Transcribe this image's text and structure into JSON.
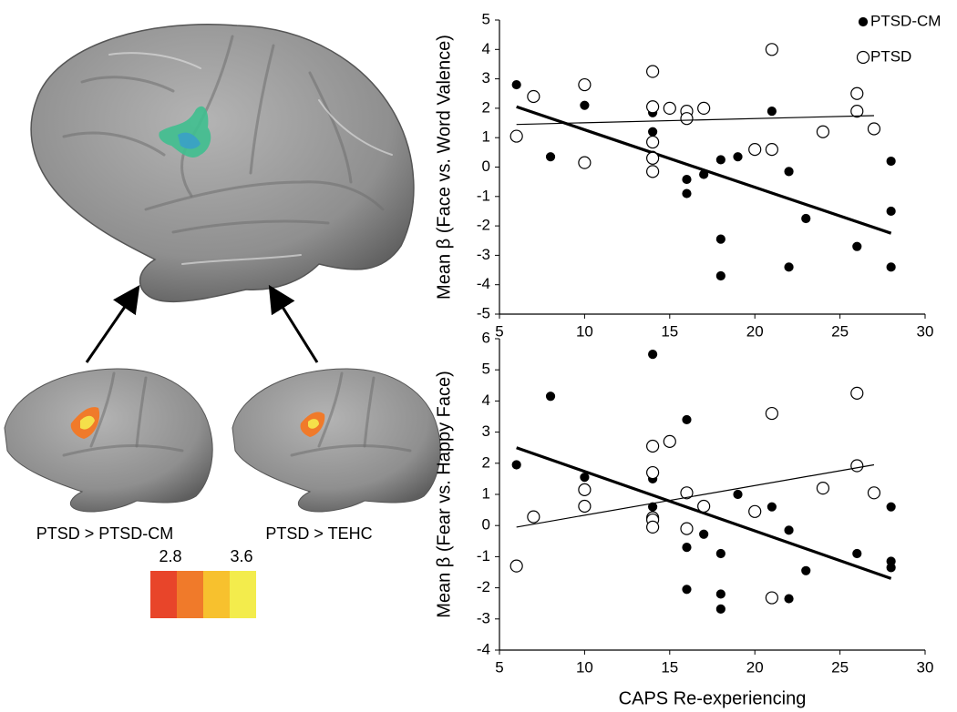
{
  "brain_panel": {
    "contrasts": [
      "PTSD > PTSD-CM",
      "PTSD > TEHC"
    ],
    "colorbar": {
      "min": 2.8,
      "max": 3.6
    }
  },
  "chart_data": [
    {
      "type": "scatter",
      "y_label": "Mean β (Face vs. Word Valence)",
      "xlim": [
        5,
        30
      ],
      "xticks": [
        5,
        10,
        15,
        20,
        25,
        30
      ],
      "ylim": [
        -5,
        5
      ],
      "yticks": [
        -5,
        -4,
        -3,
        -2,
        -1,
        0,
        1,
        2,
        3,
        4,
        5
      ],
      "legend": "top-right",
      "series": [
        {
          "name": "PTSD-CM",
          "color": "#000000",
          "marker": "filled",
          "x": [
            6,
            10,
            8,
            14,
            14,
            14,
            16,
            16,
            16,
            17,
            18,
            19,
            18,
            18,
            21,
            22,
            22,
            23,
            26,
            28,
            28,
            28
          ],
          "values": [
            2.8,
            2.1,
            0.35,
            1.85,
            1.2,
            0.4,
            1.85,
            -0.42,
            -0.9,
            -0.25,
            0.25,
            0.35,
            -2.45,
            -3.7,
            1.9,
            -0.15,
            -3.4,
            -1.75,
            -2.7,
            0.2,
            -1.5,
            -3.4
          ],
          "fit": {
            "x": [
              6,
              28
            ],
            "y": [
              2.05,
              -2.25
            ]
          }
        },
        {
          "name": "PTSD",
          "color": "#000000",
          "marker": "open",
          "x": [
            6,
            7,
            10,
            10,
            14,
            14,
            14,
            14,
            14,
            15,
            16,
            16,
            17,
            20,
            21,
            21,
            24,
            26,
            26,
            27
          ],
          "values": [
            1.05,
            2.4,
            2.8,
            0.15,
            3.25,
            2.05,
            0.85,
            0.3,
            -0.15,
            2.0,
            1.9,
            1.65,
            2.0,
            0.6,
            0.6,
            4.0,
            1.2,
            2.5,
            1.9,
            1.3
          ],
          "fit": {
            "x": [
              6,
              27
            ],
            "y": [
              1.45,
              1.75
            ]
          }
        }
      ]
    },
    {
      "type": "scatter",
      "x_label": "CAPS Re-experiencing",
      "y_label": "Mean β (Fear vs. Happy Face)",
      "xlim": [
        5,
        30
      ],
      "xticks": [
        5,
        10,
        15,
        20,
        25,
        30
      ],
      "ylim": [
        -4,
        6
      ],
      "yticks": [
        -4,
        -3,
        -2,
        -1,
        0,
        1,
        2,
        3,
        4,
        5,
        6
      ],
      "series": [
        {
          "name": "PTSD-CM",
          "color": "#000000",
          "marker": "filled",
          "x": [
            6,
            8,
            10,
            14,
            14,
            14,
            16,
            16,
            16,
            17,
            18,
            18,
            18,
            19,
            21,
            22,
            22,
            23,
            26,
            28,
            28,
            28
          ],
          "values": [
            1.95,
            4.15,
            1.55,
            5.5,
            1.5,
            0.6,
            3.4,
            -0.7,
            -2.05,
            -0.28,
            -0.9,
            -2.2,
            -2.68,
            1.0,
            0.6,
            -0.15,
            -2.35,
            -1.45,
            -0.9,
            0.6,
            -1.15,
            -1.35
          ],
          "fit": {
            "x": [
              6,
              28
            ],
            "y": [
              2.5,
              -1.7
            ]
          }
        },
        {
          "name": "PTSD",
          "color": "#000000",
          "marker": "open",
          "x": [
            6,
            7,
            10,
            10,
            14,
            14,
            14,
            14,
            14,
            15,
            16,
            16,
            17,
            20,
            21,
            21,
            24,
            26,
            26,
            27
          ],
          "values": [
            -1.3,
            0.28,
            1.15,
            0.62,
            2.55,
            1.7,
            0.25,
            0.18,
            -0.05,
            2.7,
            1.05,
            -0.1,
            0.62,
            0.45,
            3.6,
            -2.32,
            1.2,
            4.25,
            1.92,
            1.05
          ],
          "fit": {
            "x": [
              6,
              27
            ],
            "y": [
              -0.05,
              1.95
            ]
          }
        }
      ]
    }
  ]
}
